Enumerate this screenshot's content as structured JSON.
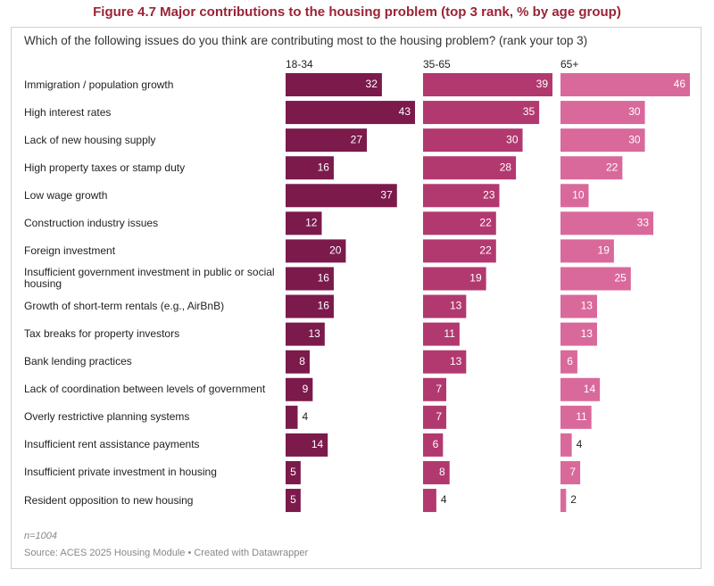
{
  "chart_data": {
    "type": "bar",
    "orientation": "horizontal",
    "title": "Figure 4.7 Major contributions to the housing problem (top 3 rank, % by age group)",
    "subtitle": "Which of the following issues do you think are contributing most to the housing problem? (rank your top 3)",
    "note": "n=1004",
    "source": "Source: ACES 2025 Housing Module • Created with Datawrapper",
    "categories": [
      "Immigration / population growth",
      "High interest rates",
      "Lack of new housing supply",
      "High property taxes or stamp duty",
      "Low wage growth",
      "Construction industry issues",
      "Foreign investment",
      "Insufficient government investment in public or social housing",
      "Growth of short-term rentals (e.g., AirBnB)",
      "Tax breaks for property investors",
      "Bank lending practices",
      "Lack of coordination between levels of government",
      "Overly restrictive planning systems",
      "Insufficient rent assistance payments",
      "Insufficient private investment in housing",
      "Resident opposition to new housing"
    ],
    "series": [
      {
        "name": "18-34",
        "color": "#7b1a4b",
        "values": [
          32,
          43,
          27,
          16,
          37,
          12,
          20,
          16,
          16,
          13,
          8,
          9,
          4,
          14,
          5,
          5
        ]
      },
      {
        "name": "35-65",
        "color": "#b2396f",
        "values": [
          39,
          35,
          30,
          28,
          23,
          22,
          22,
          19,
          13,
          11,
          13,
          7,
          7,
          6,
          8,
          4
        ]
      },
      {
        "name": "65+",
        "color": "#d9699b",
        "values": [
          46,
          30,
          30,
          22,
          10,
          33,
          19,
          25,
          13,
          13,
          6,
          14,
          11,
          4,
          7,
          2
        ]
      }
    ]
  }
}
